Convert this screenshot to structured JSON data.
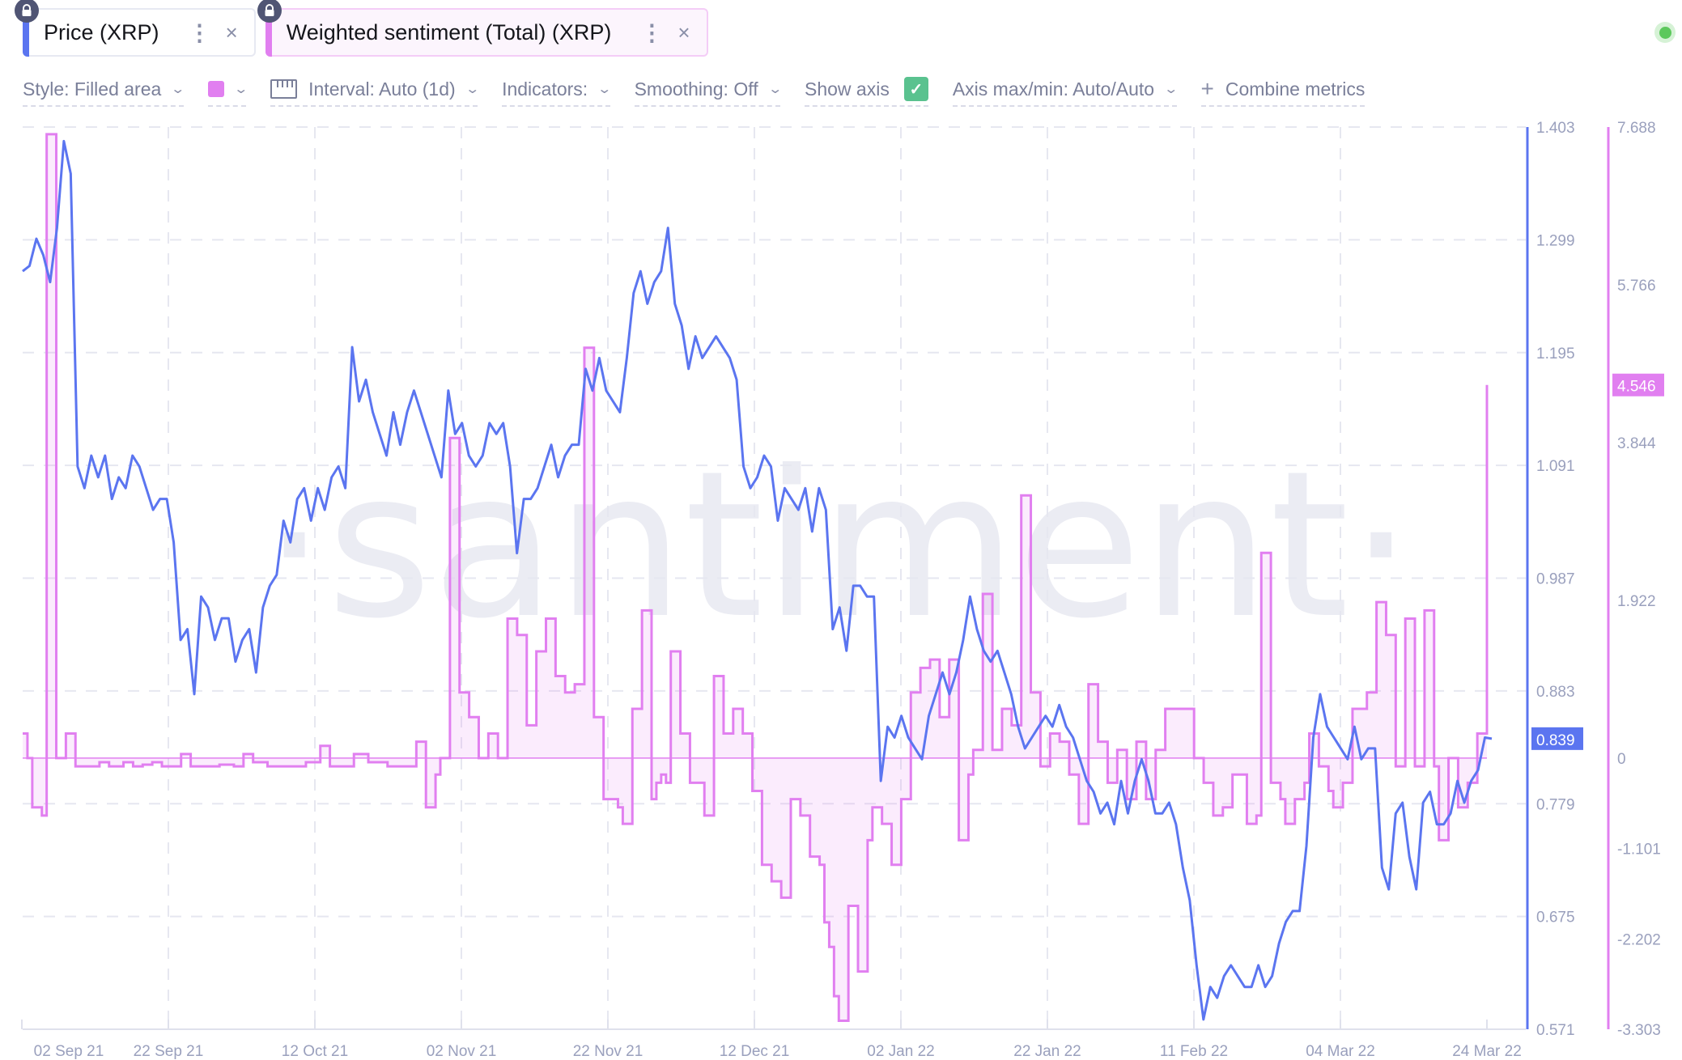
{
  "metrics": [
    {
      "label": "Price (XRP)",
      "color": "#5b75f0",
      "locked": true,
      "menu_icon": "vertical-dots-icon",
      "close_icon": "close-icon"
    },
    {
      "label": "Weighted sentiment (Total) (XRP)",
      "color": "#e17ff0",
      "locked": true,
      "menu_icon": "vertical-dots-icon",
      "close_icon": "close-icon"
    }
  ],
  "status": {
    "color": "#5cc85c"
  },
  "toolbar": {
    "style": "Style: Filled area",
    "color_swatch": "#e17ff0",
    "interval": "Interval: Auto (1d)",
    "indicators": "Indicators:",
    "smoothing": "Smoothing: Off",
    "show_axis": "Show axis",
    "show_axis_checked": true,
    "axis_maxmin": "Axis max/min: Auto/Auto",
    "combine": "Combine metrics",
    "chevron": "⌄",
    "check": "✓",
    "plus": "+"
  },
  "watermark": "·santiment·",
  "chart_data": {
    "type": "line",
    "title": "",
    "xlabel": "",
    "x_ticks": [
      "02 Sep 21",
      "22 Sep 21",
      "12 Oct 21",
      "02 Nov 21",
      "22 Nov 21",
      "12 Dec 21",
      "02 Jan 22",
      "22 Jan 22",
      "11 Feb 22",
      "04 Mar 22",
      "24 Mar 22"
    ],
    "x_start": "2021-09-02",
    "x_end": "2022-03-24",
    "grid": true,
    "legend_position": "top",
    "series": [
      {
        "name": "Price (XRP)",
        "style": "line",
        "color": "#5b75f0",
        "axis": "right-1",
        "ylim": [
          0.571,
          1.403
        ],
        "y_ticks": [
          1.403,
          1.299,
          1.195,
          1.091,
          0.987,
          0.883,
          0.779,
          0.675,
          0.571
        ],
        "last_value": "0.839",
        "values": [
          1.27,
          1.275,
          1.3,
          1.285,
          1.26,
          1.31,
          1.39,
          1.36,
          1.09,
          1.07,
          1.1,
          1.08,
          1.1,
          1.06,
          1.08,
          1.07,
          1.1,
          1.09,
          1.07,
          1.05,
          1.06,
          1.06,
          1.02,
          0.93,
          0.94,
          0.88,
          0.97,
          0.96,
          0.93,
          0.95,
          0.95,
          0.91,
          0.93,
          0.94,
          0.9,
          0.96,
          0.98,
          0.99,
          1.04,
          1.02,
          1.06,
          1.07,
          1.04,
          1.07,
          1.05,
          1.08,
          1.09,
          1.07,
          1.2,
          1.15,
          1.17,
          1.14,
          1.12,
          1.1,
          1.14,
          1.11,
          1.14,
          1.16,
          1.14,
          1.12,
          1.1,
          1.08,
          1.16,
          1.12,
          1.13,
          1.1,
          1.09,
          1.1,
          1.13,
          1.12,
          1.13,
          1.09,
          1.01,
          1.06,
          1.06,
          1.07,
          1.09,
          1.11,
          1.08,
          1.1,
          1.11,
          1.11,
          1.18,
          1.16,
          1.19,
          1.16,
          1.15,
          1.14,
          1.19,
          1.25,
          1.27,
          1.24,
          1.26,
          1.27,
          1.31,
          1.24,
          1.22,
          1.18,
          1.21,
          1.19,
          1.2,
          1.21,
          1.2,
          1.19,
          1.17,
          1.09,
          1.07,
          1.08,
          1.1,
          1.09,
          1.04,
          1.07,
          1.06,
          1.05,
          1.07,
          1.03,
          1.07,
          1.05,
          0.94,
          0.96,
          0.92,
          0.98,
          0.98,
          0.97,
          0.97,
          0.8,
          0.85,
          0.84,
          0.86,
          0.84,
          0.83,
          0.82,
          0.86,
          0.88,
          0.9,
          0.88,
          0.9,
          0.93,
          0.97,
          0.94,
          0.92,
          0.91,
          0.92,
          0.9,
          0.88,
          0.85,
          0.83,
          0.84,
          0.85,
          0.86,
          0.85,
          0.87,
          0.85,
          0.84,
          0.82,
          0.8,
          0.79,
          0.77,
          0.78,
          0.76,
          0.8,
          0.77,
          0.8,
          0.82,
          0.8,
          0.77,
          0.77,
          0.78,
          0.76,
          0.72,
          0.69,
          0.63,
          0.58,
          0.61,
          0.6,
          0.62,
          0.63,
          0.62,
          0.61,
          0.61,
          0.63,
          0.61,
          0.62,
          0.65,
          0.67,
          0.68,
          0.68,
          0.74,
          0.84,
          0.88,
          0.85,
          0.84,
          0.83,
          0.82,
          0.85,
          0.82,
          0.83,
          0.83,
          0.72,
          0.7,
          0.77,
          0.78,
          0.73,
          0.7,
          0.78,
          0.79,
          0.76,
          0.76,
          0.77,
          0.8,
          0.78,
          0.8,
          0.81,
          0.84,
          0.839
        ]
      },
      {
        "name": "Weighted sentiment (Total) (XRP)",
        "style": "filled-area-step",
        "color": "#e17ff0",
        "axis": "right-2",
        "ylim": [
          -3.303,
          7.688
        ],
        "y_ticks": [
          7.688,
          5.766,
          3.844,
          1.922,
          0,
          -1.101,
          -2.202,
          -3.303
        ],
        "last_value": "4.546",
        "values": [
          0.3,
          0,
          -0.6,
          -0.6,
          -0.7,
          7.6,
          7.6,
          0,
          0,
          0.3,
          0.3,
          -0.1,
          -0.1,
          -0.1,
          -0.1,
          -0.1,
          -0.05,
          -0.05,
          -0.1,
          -0.1,
          -0.1,
          -0.05,
          -0.05,
          -0.1,
          -0.1,
          -0.08,
          -0.08,
          -0.05,
          -0.05,
          -0.1,
          -0.1,
          -0.1,
          -0.1,
          0.05,
          0.05,
          -0.1,
          -0.1,
          -0.1,
          -0.1,
          -0.1,
          -0.1,
          -0.08,
          -0.08,
          -0.08,
          -0.1,
          -0.1,
          0.05,
          0.05,
          -0.05,
          -0.05,
          -0.05,
          -0.1,
          -0.1,
          -0.1,
          -0.1,
          -0.1,
          -0.1,
          -0.1,
          -0.1,
          -0.05,
          -0.05,
          -0.05,
          0.15,
          0.15,
          -0.1,
          -0.1,
          -0.1,
          -0.1,
          -0.1,
          0.05,
          0.05,
          0.05,
          -0.05,
          -0.05,
          -0.05,
          -0.05,
          -0.1,
          -0.1,
          -0.1,
          -0.1,
          -0.1,
          -0.1,
          0.2,
          0.2,
          -0.6,
          -0.6,
          -0.2,
          0,
          0,
          3.9,
          3.9,
          0.8,
          0.8,
          0.5,
          0.5,
          0,
          0,
          0.3,
          0.3,
          0,
          0,
          1.7,
          1.7,
          1.5,
          1.5,
          0.4,
          0.4,
          1.3,
          1.3,
          1.7,
          1.7,
          1.0,
          1.0,
          0.8,
          0.8,
          0.9,
          0.9,
          5.0,
          5.0,
          0.5,
          0.5,
          -0.5,
          -0.5,
          -0.5,
          -0.6,
          -0.8,
          -0.8,
          0.6,
          0.6,
          1.8,
          1.8,
          -0.5,
          -0.3,
          -0.2,
          -0.3,
          1.3,
          1.3,
          0.3,
          0.3,
          -0.3,
          -0.3,
          -0.3,
          -0.7,
          -0.7,
          1.0,
          1.0,
          0.3,
          0.3,
          0.6,
          0.6,
          0.3,
          0.3,
          -0.4,
          -0.4,
          -1.3,
          -1.3,
          -1.5,
          -1.5,
          -1.7,
          -1.7,
          -0.5,
          -0.5,
          -0.7,
          -0.7,
          -1.2,
          -1.2,
          -1.3,
          -2.0,
          -2.3,
          -2.9,
          -3.2,
          -3.2,
          -1.8,
          -1.8,
          -2.6,
          -2.6,
          -1.0,
          -0.6,
          -0.6,
          -0.8,
          -0.8,
          -1.3,
          -1.3,
          -0.5,
          -0.5,
          0.8,
          0.8,
          1.1,
          1.1,
          1.2,
          1.2,
          0.5,
          0.5,
          1.2,
          1.2,
          -1.0,
          -1.0,
          -0.2,
          0.1,
          0.1,
          2.0,
          2.0,
          0.1,
          0.1,
          0.6,
          0.6,
          0.4,
          0.4,
          3.2,
          3.2,
          0.8,
          0.8,
          -0.1,
          -0.1,
          0.3,
          0.3,
          0.2,
          0.2,
          -0.2,
          -0.2,
          -0.8,
          -0.8,
          0.9,
          0.9,
          0.2,
          0.2,
          -0.3,
          -0.3,
          0.1,
          0.1,
          -0.5,
          -0.5,
          0.2,
          0.2,
          -0.5,
          -0.5,
          0.1,
          0.1,
          0.6,
          0.6,
          0.6,
          0.6,
          0.6,
          0.6,
          0.0,
          0.0,
          -0.3,
          -0.3,
          -0.7,
          -0.7,
          -0.6,
          -0.6,
          -0.2,
          -0.2,
          -0.2,
          -0.8,
          -0.8,
          -0.7,
          2.5,
          2.5,
          -0.3,
          -0.3,
          -0.5,
          -0.8,
          -0.8,
          -0.5,
          -0.5,
          -0.3,
          0.3,
          0.3,
          -0.1,
          -0.1,
          -0.4,
          -0.6,
          -0.6,
          -0.3,
          -0.3,
          0.6,
          0.6,
          0.6,
          0.8,
          0.8,
          1.9,
          1.9,
          1.5,
          1.5,
          -0.1,
          -0.1,
          1.7,
          1.7,
          -0.1,
          -0.1,
          1.8,
          1.8,
          -0.1,
          -1.0,
          -1.0,
          0,
          0,
          -0.6,
          -0.6,
          -0.3,
          -0.3,
          0.3,
          0.3,
          4.546
        ]
      }
    ]
  }
}
